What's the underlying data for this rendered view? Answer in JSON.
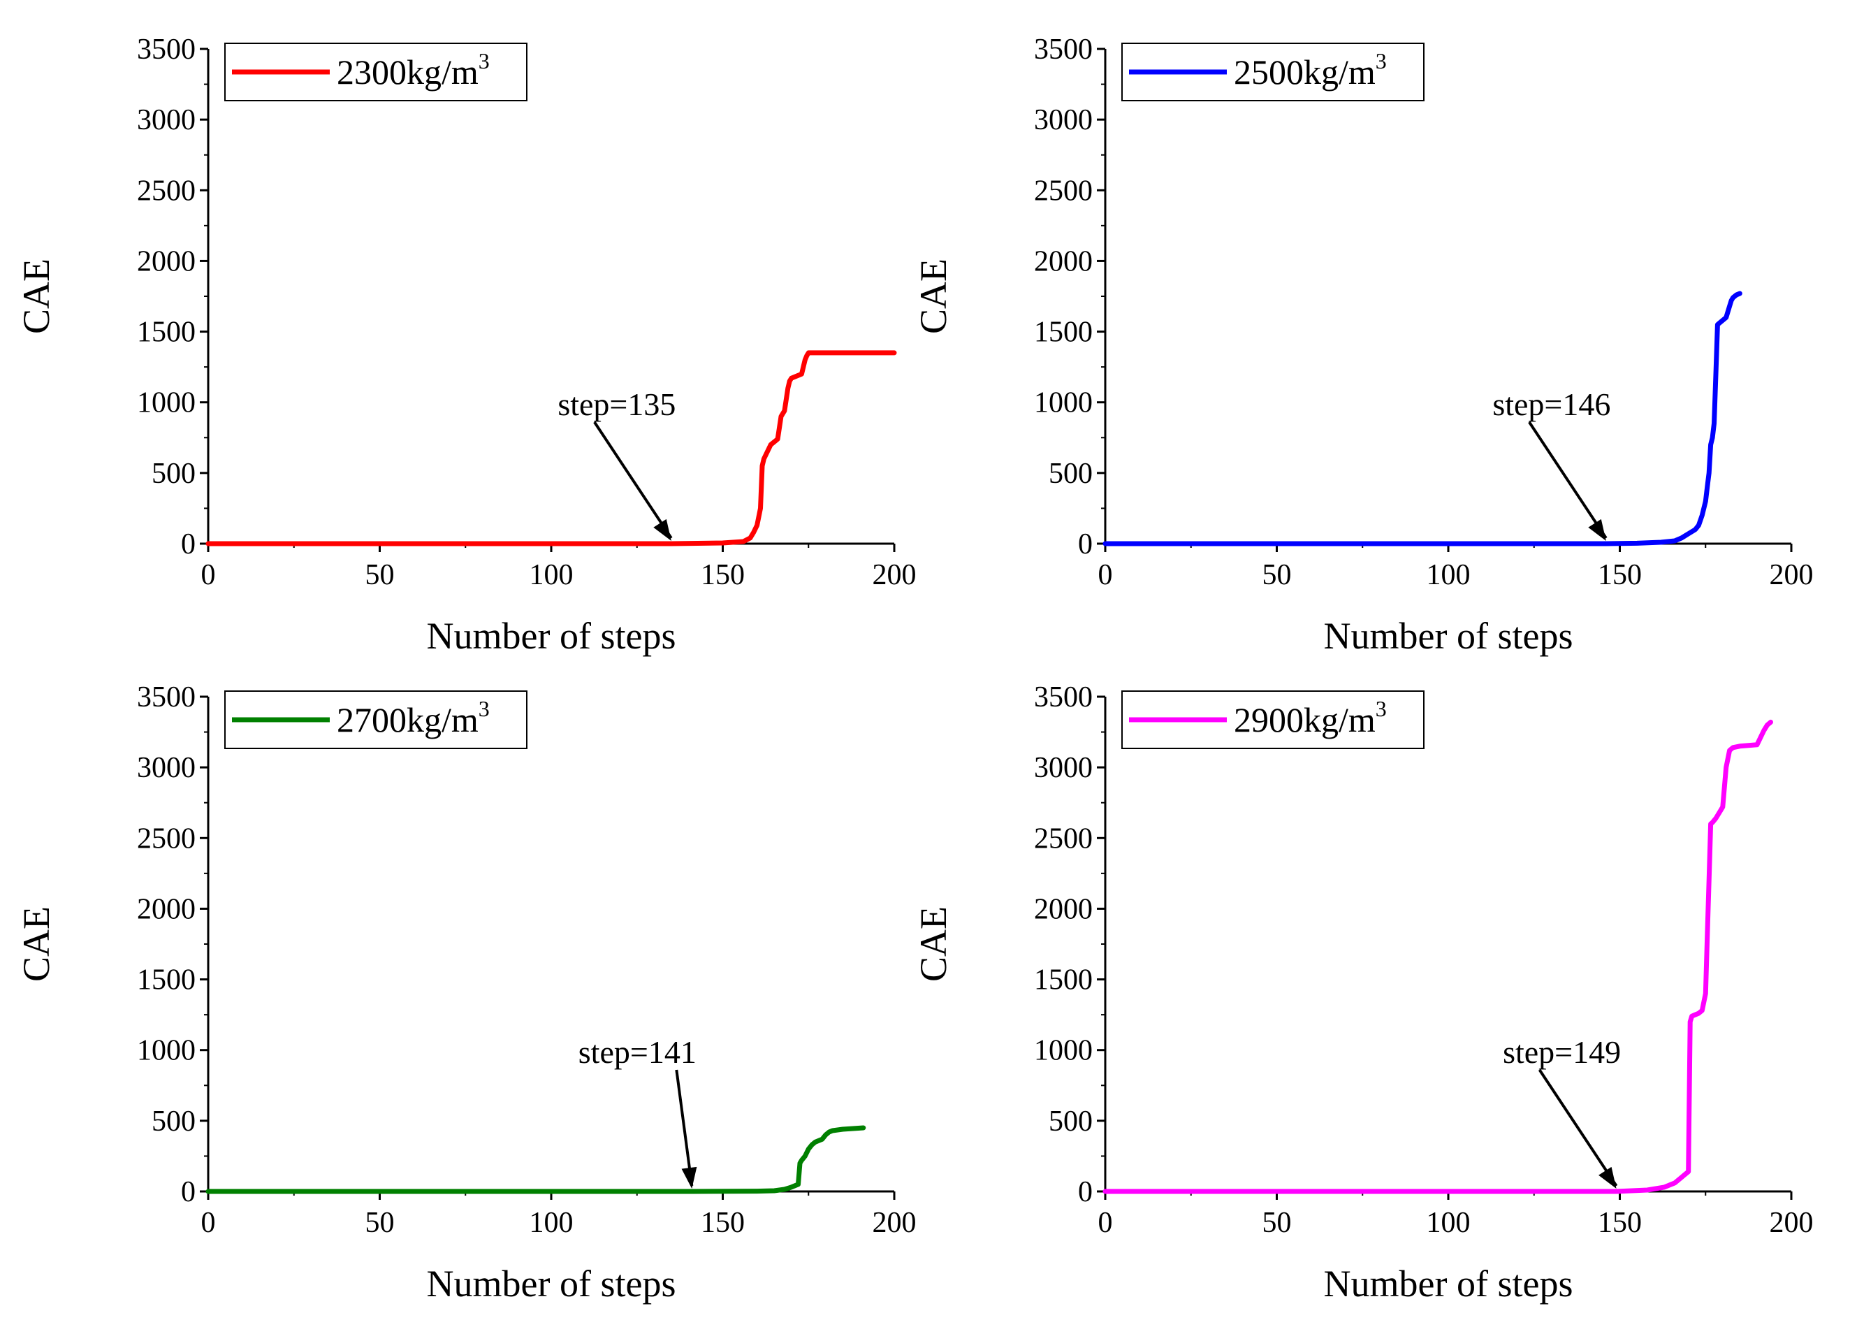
{
  "figure": {
    "panels_count": 4
  },
  "chart_data": [
    {
      "type": "line",
      "panel": "top-left",
      "title": "",
      "xlabel": "Number of steps",
      "ylabel": "CAE",
      "xlim": [
        0,
        200
      ],
      "ylim": [
        0,
        3500
      ],
      "xticks": [
        "0",
        "50",
        "100",
        "150",
        "200"
      ],
      "yticks": [
        "0",
        "500",
        "1000",
        "1500",
        "2000",
        "2500",
        "3000",
        "3500"
      ],
      "legend": {
        "label": "2300kg/m",
        "sup": "3",
        "placement": "top-left"
      },
      "color": "#ff0000",
      "x": [
        0,
        135,
        150,
        156,
        158,
        159,
        160,
        161,
        161.5,
        162,
        163,
        164,
        165,
        166,
        167,
        167.5,
        168,
        169,
        169.5,
        170,
        171,
        172,
        173,
        174,
        174.5,
        175,
        176,
        180,
        190,
        200
      ],
      "y": [
        0,
        0,
        5,
        15,
        40,
        80,
        130,
        250,
        550,
        600,
        650,
        700,
        720,
        740,
        900,
        920,
        940,
        1100,
        1150,
        1170,
        1180,
        1190,
        1200,
        1300,
        1330,
        1350,
        1350,
        1350,
        1350,
        1350
      ],
      "annotation": {
        "text": "step=135",
        "x": 135,
        "y": 0
      }
    },
    {
      "type": "line",
      "panel": "top-right",
      "title": "",
      "xlabel": "Number of steps",
      "ylabel": "CAE",
      "xlim": [
        0,
        200
      ],
      "ylim": [
        0,
        3500
      ],
      "xticks": [
        "0",
        "50",
        "100",
        "150",
        "200"
      ],
      "yticks": [
        "0",
        "500",
        "1000",
        "1500",
        "2000",
        "2500",
        "3000",
        "3500"
      ],
      "legend": {
        "label": "2500kg/m",
        "sup": "3",
        "placement": "top-left"
      },
      "color": "#0000ff",
      "x": [
        0,
        146,
        155,
        162,
        166,
        168,
        170,
        172,
        173,
        174,
        175,
        175.5,
        176,
        176.5,
        177,
        177.5,
        178,
        178.5,
        179,
        179.5,
        180,
        181,
        182,
        182.5,
        183,
        184,
        185
      ],
      "y": [
        0,
        0,
        3,
        10,
        20,
        40,
        70,
        100,
        130,
        200,
        300,
        400,
        500,
        700,
        750,
        850,
        1200,
        1550,
        1560,
        1570,
        1580,
        1600,
        1680,
        1720,
        1740,
        1760,
        1770
      ],
      "annotation": {
        "text": "step=146",
        "x": 146,
        "y": 0
      }
    },
    {
      "type": "line",
      "panel": "bottom-left",
      "title": "",
      "xlabel": "Number of steps",
      "ylabel": "CAE",
      "xlim": [
        0,
        200
      ],
      "ylim": [
        0,
        3500
      ],
      "xticks": [
        "0",
        "50",
        "100",
        "150",
        "200"
      ],
      "yticks": [
        "0",
        "500",
        "1000",
        "1500",
        "2000",
        "2500",
        "3000",
        "3500"
      ],
      "legend": {
        "label": "2700kg/m",
        "sup": "3",
        "placement": "top-left"
      },
      "color": "#008000",
      "x": [
        0,
        141,
        160,
        165,
        168,
        170,
        171,
        172,
        172.5,
        173,
        174,
        175,
        176,
        177,
        178,
        179,
        180,
        181,
        182,
        185,
        188,
        191
      ],
      "y": [
        0,
        0,
        2,
        5,
        15,
        30,
        40,
        50,
        200,
        220,
        250,
        300,
        330,
        350,
        360,
        370,
        400,
        420,
        430,
        440,
        445,
        450
      ],
      "annotation": {
        "text": "step=141",
        "x": 141,
        "y": 0
      }
    },
    {
      "type": "line",
      "panel": "bottom-right",
      "title": "",
      "xlabel": "Number of steps",
      "ylabel": "CAE",
      "xlim": [
        0,
        200
      ],
      "ylim": [
        0,
        3500
      ],
      "xticks": [
        "0",
        "50",
        "100",
        "150",
        "200"
      ],
      "yticks": [
        "0",
        "500",
        "1000",
        "1500",
        "2000",
        "2500",
        "3000",
        "3500"
      ],
      "legend": {
        "label": "2900kg/m",
        "sup": "3",
        "placement": "top-left"
      },
      "color": "#ff00ff",
      "x": [
        0,
        149,
        158,
        163,
        166,
        168,
        169,
        170,
        170.5,
        171,
        172,
        173,
        174,
        175,
        175.5,
        176,
        176.5,
        177,
        178,
        179,
        180,
        181,
        182,
        183,
        185,
        190,
        192,
        193,
        194
      ],
      "y": [
        0,
        0,
        10,
        30,
        60,
        100,
        120,
        140,
        1200,
        1240,
        1250,
        1260,
        1280,
        1400,
        1800,
        2200,
        2600,
        2610,
        2640,
        2680,
        2720,
        3000,
        3120,
        3140,
        3150,
        3160,
        3260,
        3300,
        3320
      ],
      "annotation": {
        "text": "step=149",
        "x": 149,
        "y": 0
      }
    }
  ]
}
